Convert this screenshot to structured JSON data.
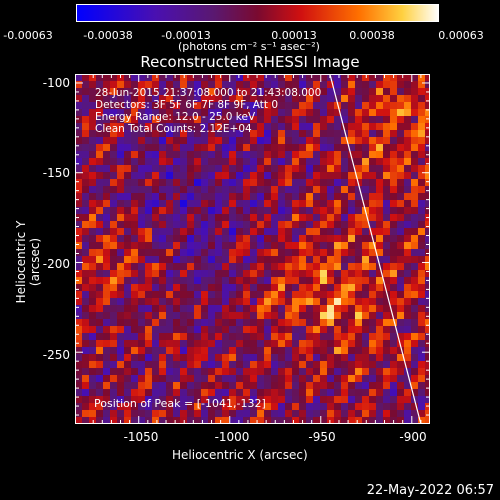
{
  "chart_data": {
    "type": "heatmap",
    "title": "Reconstructed RHESSI Image",
    "xlabel": "Heliocentric X (arcsec)",
    "ylabel": "Heliocentric Y (arcsec)",
    "xlim": [
      -1085,
      -890
    ],
    "ylim": [
      -290,
      -95
    ],
    "x_ticks": [
      "-1050",
      "-1000",
      "-950",
      "-900"
    ],
    "y_ticks": [
      "-100",
      "-150",
      "-200",
      "-250"
    ],
    "colorbar": {
      "range": [
        -0.00063,
        0.00063
      ],
      "tick_labels": [
        "-0.00063",
        "-0.00038",
        "-0.00013",
        "0.00013",
        "0.00038",
        "0.00063"
      ],
      "unit_label": "(photons cm⁻² s⁻¹ asec⁻²)"
    },
    "annotations": {
      "time": "28-Jun-2015 21:37:08.000 to 21:43:08.000",
      "detectors": "Detectors: 3F 5F 6F 7F 8F 9F, Att 0",
      "energy": "Energy Range: 12.0 - 25.0 keV",
      "method": "Clean     Total Counts: 2.12E+04",
      "peak": "Position of Peak = [-1041,-132]"
    },
    "limb_line": {
      "x": [
        -945,
        -895
      ],
      "y": [
        -95,
        -290
      ]
    },
    "grid": false
  },
  "footer": {
    "timestamp": "22-May-2022 06:57"
  },
  "colors": {
    "background": "#000000",
    "text": "#ffffff"
  }
}
